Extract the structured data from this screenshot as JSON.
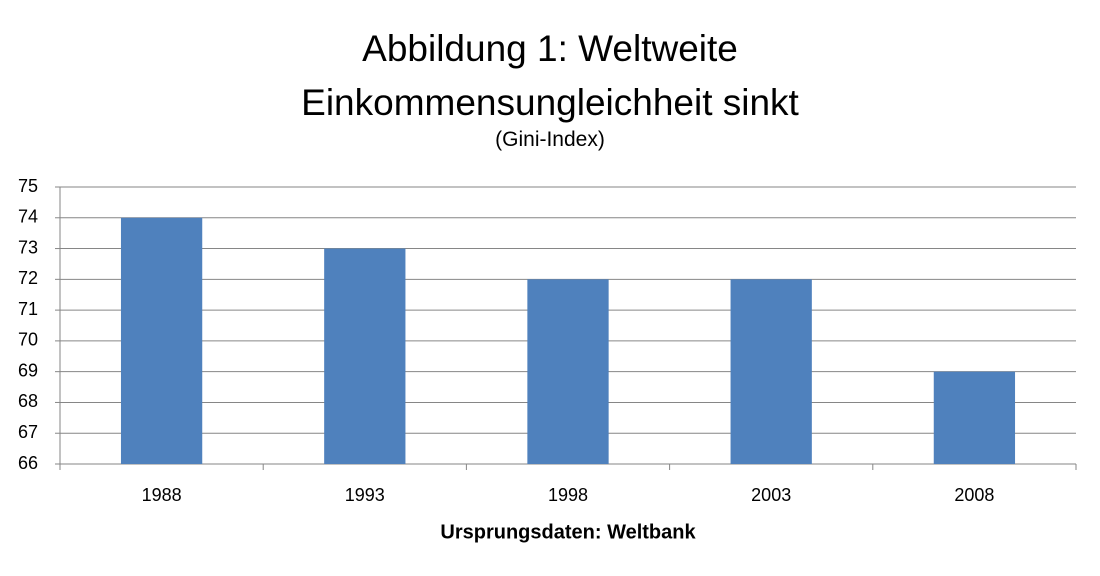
{
  "chart_data": {
    "type": "bar",
    "title": "Abbildung 1: Weltweite Einkommensungleichheit sinkt",
    "subtitle": "(Gini-Index)",
    "x_label": "Ursprungsdaten: Weltbank",
    "categories": [
      "1988",
      "1993",
      "1998",
      "2003",
      "2008"
    ],
    "values": [
      74,
      73,
      72,
      72,
      69
    ],
    "color": "#4f81bd",
    "ylim": [
      66,
      75
    ],
    "yticks": [
      66,
      67,
      68,
      69,
      70,
      71,
      72,
      73,
      74,
      75
    ],
    "grid": true
  }
}
